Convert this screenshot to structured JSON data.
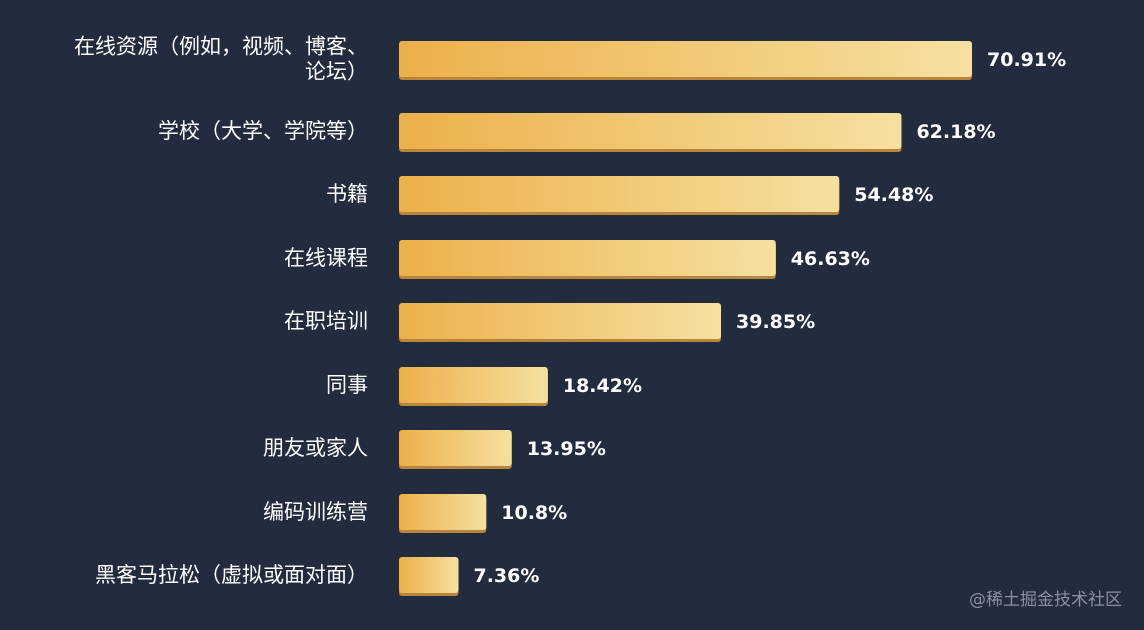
{
  "chart_data": {
    "type": "bar",
    "orientation": "horizontal",
    "categories": [
      [
        "在线资源（例如，视频、博客、",
        "论坛）"
      ],
      [
        "学校（大学、学院等）"
      ],
      [
        "书籍"
      ],
      [
        "在线课程"
      ],
      [
        "在职培训"
      ],
      [
        "同事"
      ],
      [
        "朋友或家人"
      ],
      [
        "编码训练营"
      ],
      [
        "黑客马拉松（虚拟或面对面）"
      ]
    ],
    "values": [
      70.91,
      62.18,
      54.48,
      46.63,
      39.85,
      18.42,
      13.95,
      10.8,
      7.36
    ],
    "value_labels": [
      "70.91%",
      "62.18%",
      "54.48%",
      "46.63%",
      "39.85%",
      "18.42%",
      "13.95%",
      "10.8%",
      "7.36%"
    ],
    "unit": "%",
    "xlim": [
      0,
      70.91
    ],
    "grid": false,
    "colors": {
      "background": "#232b3f",
      "bar_start": "#ecb04a",
      "bar_end": "#f6e0a0",
      "bar_shadow": "#b8863a",
      "text": "#ffffff"
    }
  },
  "watermark": "@稀土掘金技术社区"
}
